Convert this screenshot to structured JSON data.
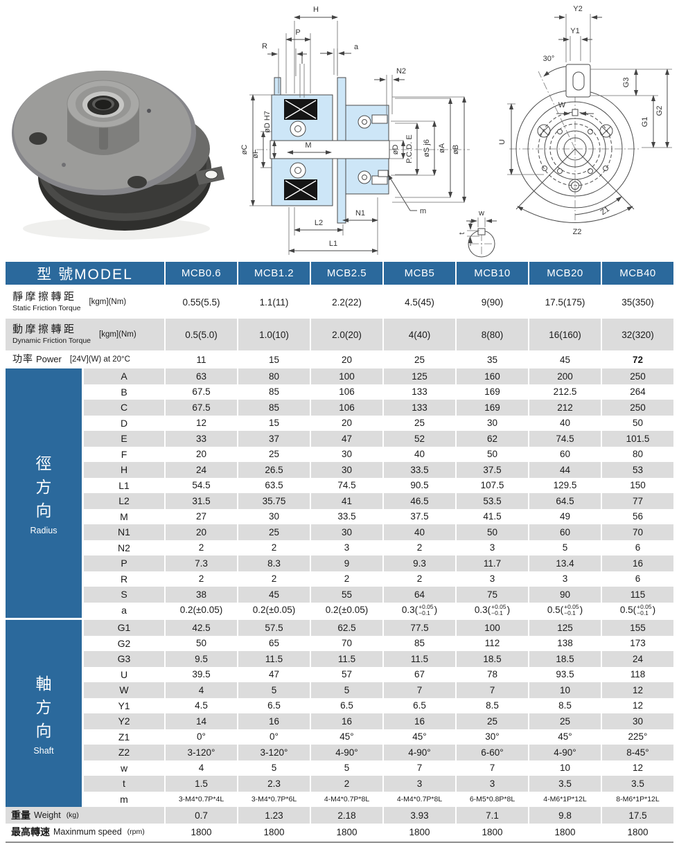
{
  "page": {
    "title": "MCB electromagnetic clutch specification sheet"
  },
  "colors": {
    "header_blue": "#2b699c",
    "row_gray": "#dcdcdc"
  },
  "table": {
    "model_header": "型 號MODEL",
    "models": [
      "MCB0.6",
      "MCB1.2",
      "MCB2.5",
      "MCB5",
      "MCB10",
      "MCB20",
      "MCB40"
    ],
    "spec_rows": [
      {
        "zh": "靜摩擦轉距",
        "en": "Static Friction Torque",
        "unit": "[kgm](Nm)",
        "values": [
          "0.55(5.5)",
          "1.1(11)",
          "2.2(22)",
          "4.5(45)",
          "9(90)",
          "17.5(175)",
          "35(350)"
        ]
      },
      {
        "zh": "動摩擦轉距",
        "en": "Dynamic Friction Torque",
        "unit": "[kgm](Nm)",
        "values": [
          "0.5(5.0)",
          "1.0(10)",
          "2.0(20)",
          "4(40)",
          "8(80)",
          "16(160)",
          "32(320)"
        ]
      },
      {
        "zh": "功率",
        "en": "Power",
        "unit": "[24V](W) at 20°C",
        "inline": true,
        "bold_cols": [
          6
        ],
        "values": [
          "11",
          "15",
          "20",
          "25",
          "35",
          "45",
          "72"
        ]
      }
    ],
    "sections": [
      {
        "zh": "徑方向",
        "en": "Radius",
        "rows": [
          {
            "param": "A",
            "values": [
              "63",
              "80",
              "100",
              "125",
              "160",
              "200",
              "250"
            ]
          },
          {
            "param": "B",
            "values": [
              "67.5",
              "85",
              "106",
              "133",
              "169",
              "212.5",
              "264"
            ]
          },
          {
            "param": "C",
            "values": [
              "67.5",
              "85",
              "106",
              "133",
              "169",
              "212",
              "250"
            ]
          },
          {
            "param": "D",
            "values": [
              "12",
              "15",
              "20",
              "25",
              "30",
              "40",
              "50"
            ]
          },
          {
            "param": "E",
            "values": [
              "33",
              "37",
              "47",
              "52",
              "62",
              "74.5",
              "101.5"
            ]
          },
          {
            "param": "F",
            "values": [
              "20",
              "25",
              "30",
              "40",
              "50",
              "60",
              "80"
            ]
          },
          {
            "param": "H",
            "values": [
              "24",
              "26.5",
              "30",
              "33.5",
              "37.5",
              "44",
              "53"
            ]
          },
          {
            "param": "L1",
            "values": [
              "54.5",
              "63.5",
              "74.5",
              "90.5",
              "107.5",
              "129.5",
              "150"
            ]
          },
          {
            "param": "L2",
            "values": [
              "31.5",
              "35.75",
              "41",
              "46.5",
              "53.5",
              "64.5",
              "77"
            ]
          },
          {
            "param": "M",
            "values": [
              "27",
              "30",
              "33.5",
              "37.5",
              "41.5",
              "49",
              "56"
            ]
          },
          {
            "param": "N1",
            "values": [
              "20",
              "25",
              "30",
              "40",
              "50",
              "60",
              "70"
            ]
          },
          {
            "param": "N2",
            "values": [
              "2",
              "2",
              "3",
              "2",
              "3",
              "5",
              "6"
            ]
          },
          {
            "param": "P",
            "values": [
              "7.3",
              "8.3",
              "9",
              "9.3",
              "11.7",
              "13.4",
              "16"
            ]
          },
          {
            "param": "R",
            "values": [
              "2",
              "2",
              "2",
              "2",
              "3",
              "3",
              "6"
            ]
          },
          {
            "param": "S",
            "values": [
              "38",
              "45",
              "55",
              "64",
              "75",
              "90",
              "115"
            ]
          },
          {
            "param": "a",
            "values": [
              "0.2(±0.05)",
              "0.2(±0.05)",
              "0.2(±0.05)",
              {
                "pre": "0.3(",
                "sup": "+0.05",
                "sub": "−0.1",
                "post": ")"
              },
              {
                "pre": "0.3(",
                "sup": "+0.05",
                "sub": "−0.1",
                "post": ")"
              },
              {
                "pre": "0.5(",
                "sup": "+0.05",
                "sub": "−0.1",
                "post": ")"
              },
              {
                "pre": "0.5(",
                "sup": "+0.05",
                "sub": "−0.1",
                "post": ")"
              }
            ]
          }
        ]
      },
      {
        "zh": "軸方向",
        "en": "Shaft",
        "rows": [
          {
            "param": "G1",
            "values": [
              "42.5",
              "57.5",
              "62.5",
              "77.5",
              "100",
              "125",
              "155"
            ]
          },
          {
            "param": "G2",
            "values": [
              "50",
              "65",
              "70",
              "85",
              "112",
              "138",
              "173"
            ]
          },
          {
            "param": "G3",
            "values": [
              "9.5",
              "11.5",
              "11.5",
              "11.5",
              "18.5",
              "18.5",
              "24"
            ]
          },
          {
            "param": "U",
            "values": [
              "39.5",
              "47",
              "57",
              "67",
              "78",
              "93.5",
              "118"
            ]
          },
          {
            "param": "W",
            "values": [
              "4",
              "5",
              "5",
              "7",
              "7",
              "10",
              "12"
            ]
          },
          {
            "param": "Y1",
            "values": [
              "4.5",
              "6.5",
              "6.5",
              "6.5",
              "8.5",
              "8.5",
              "12"
            ]
          },
          {
            "param": "Y2",
            "values": [
              "14",
              "16",
              "16",
              "16",
              "25",
              "25",
              "30"
            ]
          },
          {
            "param": "Z1",
            "values": [
              "0°",
              "0°",
              "45°",
              "45°",
              "30°",
              "45°",
              "225°"
            ]
          },
          {
            "param": "Z2",
            "values": [
              "3-120°",
              "3-120°",
              "4-90°",
              "4-90°",
              "6-60°",
              "4-90°",
              "8-45°"
            ]
          },
          {
            "param": "w",
            "values": [
              "4",
              "5",
              "5",
              "7",
              "7",
              "10",
              "12"
            ]
          },
          {
            "param": "t",
            "values": [
              "1.5",
              "2.3",
              "2",
              "3",
              "3",
              "3.5",
              "3.5"
            ]
          },
          {
            "param": "m",
            "small": true,
            "values": [
              "3-M4*0.7P*4L",
              "3-M4*0.7P*6L",
              "4-M4*0.7P*8L",
              "4-M4*0.7P*8L",
              "6-M5*0.8P*8L",
              "4-M6*1P*12L",
              "8-M6*1P*12L"
            ]
          }
        ]
      }
    ],
    "footer_rows": [
      {
        "zh": "重量",
        "en": "Weight",
        "unit": "(kg)",
        "values": [
          "0.7",
          "1.23",
          "2.18",
          "3.93",
          "7.1",
          "9.8",
          "17.5"
        ]
      },
      {
        "zh": "最高轉速",
        "en": "Maxinmum speed",
        "unit": "(rpm)",
        "values": [
          "1800",
          "1800",
          "1800",
          "1800",
          "1800",
          "1800",
          "1800"
        ]
      }
    ]
  },
  "drawings": {
    "section_view": {
      "labels": {
        "H": "H",
        "P": "P",
        "R": "R",
        "a": "a",
        "N2": "N2",
        "oC": "øC",
        "oF": "øF",
        "oDH7": "øD H7",
        "M": "M",
        "L2": "L2",
        "N1": "N1",
        "L1": "L1",
        "m": "m",
        "oD": "øD",
        "PCDE": "P.C.D. E",
        "oSj6": "øS j6",
        "oA": "øA",
        "oB": "øB"
      }
    },
    "front_view": {
      "labels": {
        "Y2": "Y2",
        "Y1": "Y1",
        "deg30": "30°",
        "G3": "G3",
        "G1": "G1",
        "G2": "G2",
        "W": "W",
        "U": "U",
        "Z1": "Z1",
        "Z2": "Z2"
      }
    },
    "keyway_detail": {
      "labels": {
        "w": "w",
        "t": "t"
      }
    }
  }
}
